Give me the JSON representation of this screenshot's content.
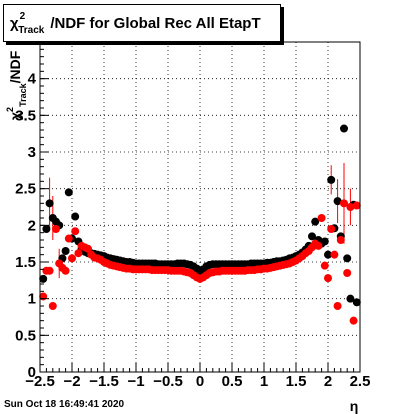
{
  "title": {
    "symbol": "χ",
    "sup": "2",
    "sub": "Track",
    "rest": "/NDF for Global Rec All EtapT"
  },
  "timestamp": "Sun Oct 18 16:49:41 2020",
  "chart_data": {
    "type": "scatter",
    "xlabel": "η",
    "ylabel": "χ²Track/NDF",
    "xlim": [
      -2.5,
      2.5
    ],
    "ylim": [
      0,
      4.5
    ],
    "x_ticks": [
      "−2.5",
      "−2",
      "−1.5",
      "−1",
      "−0.5",
      "0",
      "0.5",
      "1",
      "1.5",
      "2",
      "2.5"
    ],
    "y_ticks": [
      "0",
      "0.5",
      "1",
      "1.5",
      "2",
      "2.5",
      "3",
      "3.5",
      "4"
    ],
    "grid": true,
    "series": [
      {
        "color": "#000000",
        "points": [
          [
            -2.45,
            1.27
          ],
          [
            -2.4,
            1.95
          ],
          [
            -2.35,
            2.3
          ],
          [
            -2.3,
            2.1
          ],
          [
            -2.25,
            2.05
          ],
          [
            -2.2,
            2.0
          ],
          [
            -2.15,
            1.55
          ],
          [
            -2.1,
            1.65
          ],
          [
            -2.05,
            2.45
          ],
          [
            -2.0,
            1.82
          ],
          [
            -1.95,
            2.12
          ],
          [
            -1.9,
            1.78
          ],
          [
            -1.85,
            1.68
          ],
          [
            -1.8,
            1.64
          ],
          [
            -1.75,
            1.62
          ],
          [
            -1.7,
            1.62
          ],
          [
            -1.65,
            1.61
          ],
          [
            -1.6,
            1.6
          ],
          [
            -1.55,
            1.59
          ],
          [
            -1.5,
            1.58
          ],
          [
            -1.45,
            1.56
          ],
          [
            -1.4,
            1.55
          ],
          [
            -1.35,
            1.54
          ],
          [
            -1.3,
            1.53
          ],
          [
            -1.25,
            1.52
          ],
          [
            -1.2,
            1.51
          ],
          [
            -1.15,
            1.5
          ],
          [
            -1.1,
            1.5
          ],
          [
            -1.05,
            1.49
          ],
          [
            -1.0,
            1.48
          ],
          [
            -0.95,
            1.48
          ],
          [
            -0.9,
            1.48
          ],
          [
            -0.85,
            1.48
          ],
          [
            -0.8,
            1.48
          ],
          [
            -0.75,
            1.48
          ],
          [
            -0.7,
            1.48
          ],
          [
            -0.65,
            1.47
          ],
          [
            -0.6,
            1.47
          ],
          [
            -0.55,
            1.47
          ],
          [
            -0.5,
            1.47
          ],
          [
            -0.45,
            1.47
          ],
          [
            -0.4,
            1.47
          ],
          [
            -0.35,
            1.48
          ],
          [
            -0.3,
            1.48
          ],
          [
            -0.25,
            1.48
          ],
          [
            -0.2,
            1.47
          ],
          [
            -0.15,
            1.46
          ],
          [
            -0.1,
            1.44
          ],
          [
            -0.05,
            1.41
          ],
          [
            0.0,
            1.38
          ],
          [
            0.05,
            1.4
          ],
          [
            0.1,
            1.44
          ],
          [
            0.15,
            1.46
          ],
          [
            0.2,
            1.47
          ],
          [
            0.25,
            1.47
          ],
          [
            0.3,
            1.47
          ],
          [
            0.35,
            1.47
          ],
          [
            0.4,
            1.47
          ],
          [
            0.45,
            1.47
          ],
          [
            0.5,
            1.47
          ],
          [
            0.55,
            1.47
          ],
          [
            0.6,
            1.47
          ],
          [
            0.65,
            1.47
          ],
          [
            0.7,
            1.47
          ],
          [
            0.75,
            1.47
          ],
          [
            0.8,
            1.48
          ],
          [
            0.85,
            1.48
          ],
          [
            0.9,
            1.48
          ],
          [
            0.95,
            1.48
          ],
          [
            1.0,
            1.48
          ],
          [
            1.05,
            1.49
          ],
          [
            1.1,
            1.49
          ],
          [
            1.15,
            1.5
          ],
          [
            1.2,
            1.51
          ],
          [
            1.25,
            1.51
          ],
          [
            1.3,
            1.52
          ],
          [
            1.35,
            1.53
          ],
          [
            1.4,
            1.55
          ],
          [
            1.45,
            1.56
          ],
          [
            1.5,
            1.58
          ],
          [
            1.55,
            1.6
          ],
          [
            1.6,
            1.63
          ],
          [
            1.65,
            1.67
          ],
          [
            1.7,
            1.72
          ],
          [
            1.75,
            1.85
          ],
          [
            1.8,
            2.05
          ],
          [
            1.85,
            1.8
          ],
          [
            1.9,
            1.75
          ],
          [
            1.95,
            1.78
          ],
          [
            2.0,
            1.6
          ],
          [
            2.05,
            2.62
          ],
          [
            2.1,
            1.96
          ],
          [
            2.15,
            2.33
          ],
          [
            2.2,
            1.85
          ],
          [
            2.25,
            3.32
          ],
          [
            2.3,
            1.55
          ],
          [
            2.35,
            1.0
          ],
          [
            2.4,
            2.28
          ],
          [
            2.45,
            0.95
          ]
        ]
      },
      {
        "color": "#ff0000",
        "points": [
          [
            -2.45,
            1.03
          ],
          [
            -2.4,
            1.38
          ],
          [
            -2.35,
            1.38
          ],
          [
            -2.3,
            0.9
          ],
          [
            -2.25,
            1.95
          ],
          [
            -2.2,
            1.48
          ],
          [
            -2.15,
            1.42
          ],
          [
            -2.1,
            1.38
          ],
          [
            -2.05,
            1.82
          ],
          [
            -2.0,
            1.55
          ],
          [
            -1.95,
            1.92
          ],
          [
            -1.9,
            1.62
          ],
          [
            -1.85,
            1.72
          ],
          [
            -1.8,
            1.7
          ],
          [
            -1.75,
            1.68
          ],
          [
            -1.7,
            1.6
          ],
          [
            -1.65,
            1.56
          ],
          [
            -1.6,
            1.55
          ],
          [
            -1.55,
            1.53
          ],
          [
            -1.5,
            1.5
          ],
          [
            -1.45,
            1.48
          ],
          [
            -1.4,
            1.46
          ],
          [
            -1.35,
            1.45
          ],
          [
            -1.3,
            1.44
          ],
          [
            -1.25,
            1.43
          ],
          [
            -1.2,
            1.42
          ],
          [
            -1.15,
            1.41
          ],
          [
            -1.1,
            1.41
          ],
          [
            -1.05,
            1.4
          ],
          [
            -1.0,
            1.4
          ],
          [
            -0.95,
            1.4
          ],
          [
            -0.9,
            1.4
          ],
          [
            -0.85,
            1.4
          ],
          [
            -0.8,
            1.4
          ],
          [
            -0.75,
            1.39
          ],
          [
            -0.7,
            1.39
          ],
          [
            -0.65,
            1.39
          ],
          [
            -0.6,
            1.39
          ],
          [
            -0.55,
            1.39
          ],
          [
            -0.5,
            1.39
          ],
          [
            -0.45,
            1.38
          ],
          [
            -0.4,
            1.38
          ],
          [
            -0.35,
            1.38
          ],
          [
            -0.3,
            1.38
          ],
          [
            -0.25,
            1.37
          ],
          [
            -0.2,
            1.36
          ],
          [
            -0.15,
            1.35
          ],
          [
            -0.1,
            1.32
          ],
          [
            -0.05,
            1.29
          ],
          [
            0.0,
            1.27
          ],
          [
            0.05,
            1.29
          ],
          [
            0.1,
            1.32
          ],
          [
            0.15,
            1.35
          ],
          [
            0.2,
            1.36
          ],
          [
            0.25,
            1.37
          ],
          [
            0.3,
            1.37
          ],
          [
            0.35,
            1.38
          ],
          [
            0.4,
            1.38
          ],
          [
            0.45,
            1.38
          ],
          [
            0.5,
            1.38
          ],
          [
            0.55,
            1.38
          ],
          [
            0.6,
            1.38
          ],
          [
            0.65,
            1.38
          ],
          [
            0.7,
            1.38
          ],
          [
            0.75,
            1.39
          ],
          [
            0.8,
            1.39
          ],
          [
            0.85,
            1.39
          ],
          [
            0.9,
            1.4
          ],
          [
            0.95,
            1.4
          ],
          [
            1.0,
            1.41
          ],
          [
            1.05,
            1.41
          ],
          [
            1.1,
            1.42
          ],
          [
            1.15,
            1.43
          ],
          [
            1.2,
            1.44
          ],
          [
            1.25,
            1.45
          ],
          [
            1.3,
            1.46
          ],
          [
            1.35,
            1.47
          ],
          [
            1.4,
            1.48
          ],
          [
            1.45,
            1.5
          ],
          [
            1.5,
            1.52
          ],
          [
            1.55,
            1.55
          ],
          [
            1.6,
            1.58
          ],
          [
            1.65,
            1.62
          ],
          [
            1.7,
            1.65
          ],
          [
            1.75,
            1.7
          ],
          [
            1.8,
            1.75
          ],
          [
            1.85,
            1.72
          ],
          [
            1.9,
            2.1
          ],
          [
            1.95,
            1.45
          ],
          [
            2.0,
            1.28
          ],
          [
            2.05,
            1.95
          ],
          [
            2.1,
            1.6
          ],
          [
            2.15,
            0.9
          ],
          [
            2.2,
            1.8
          ],
          [
            2.25,
            2.3
          ],
          [
            2.3,
            1.35
          ],
          [
            2.35,
            2.25
          ],
          [
            2.4,
            0.7
          ],
          [
            2.45,
            2.27
          ]
        ]
      }
    ],
    "error_bars": [
      {
        "x": -2.35,
        "y": 2.3,
        "err": 0.35,
        "color": "#ff0000"
      },
      {
        "x": -2.3,
        "y": 2.1,
        "err": 0.3,
        "color": "#ff0000"
      },
      {
        "x": -2.2,
        "y": 1.48,
        "err": 0.2,
        "color": "#ff0000"
      },
      {
        "x": 2.05,
        "y": 2.62,
        "err": 0.2,
        "color": "#ff0000"
      },
      {
        "x": 2.15,
        "y": 2.33,
        "err": 0.3,
        "color": "#ff0000"
      },
      {
        "x": 2.25,
        "y": 2.3,
        "err": 0.55,
        "color": "#ff0000"
      },
      {
        "x": 2.35,
        "y": 2.25,
        "err": 0.25,
        "color": "#ff0000"
      }
    ]
  }
}
